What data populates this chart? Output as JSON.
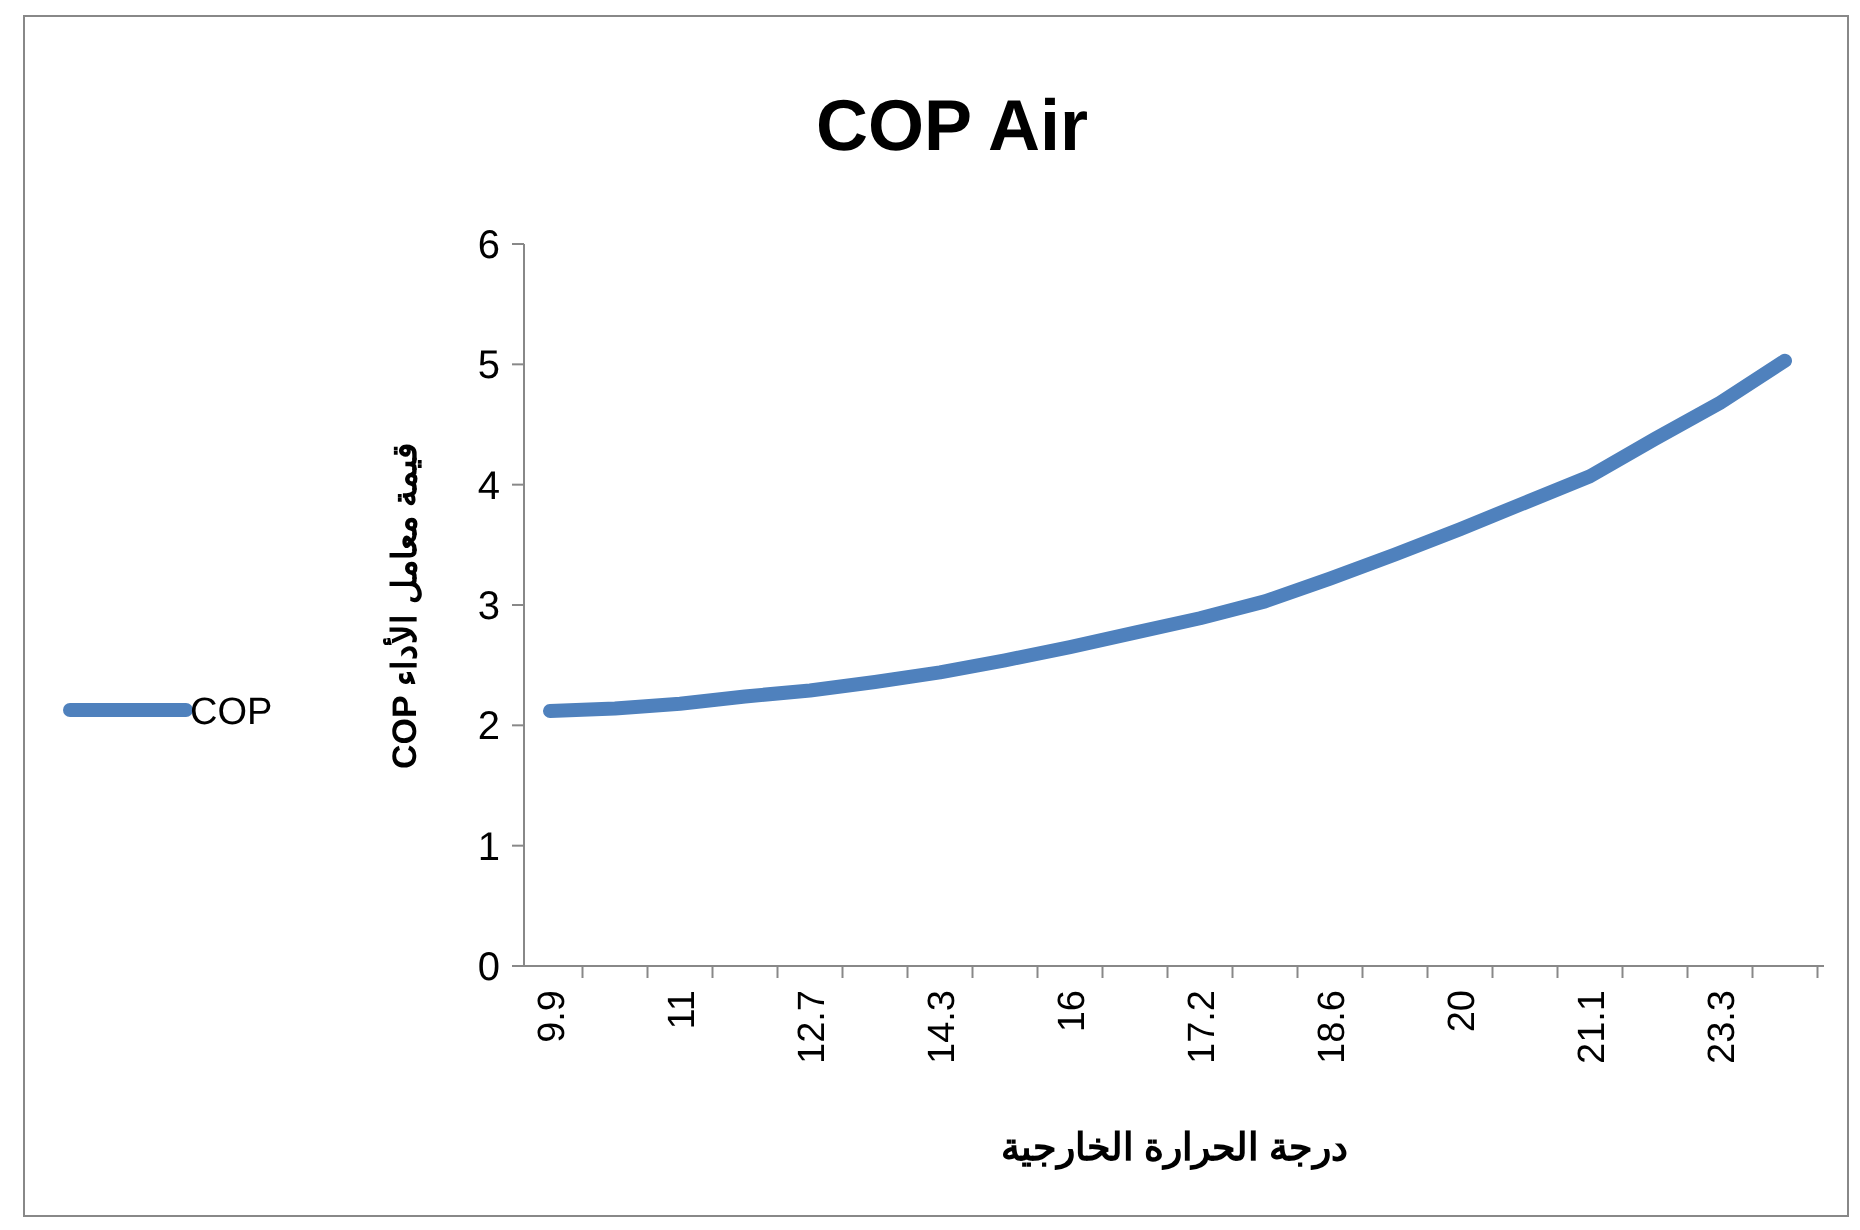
{
  "chart_data": {
    "type": "line",
    "title": "COP Air",
    "xlabel": "درجة الحرارة الخارجية",
    "ylabel": "قيمة معامل الأداء COP",
    "categories": [
      "9.9",
      null,
      "11",
      null,
      "12.7",
      null,
      "14.3",
      null,
      "16",
      null,
      "17.2",
      null,
      "18.6",
      null,
      "20",
      null,
      "21.1",
      null,
      "23.3",
      null
    ],
    "series": [
      {
        "name": "COP",
        "color": "#4f81bd",
        "values": [
          2.12,
          2.14,
          2.18,
          2.24,
          2.29,
          2.36,
          2.44,
          2.54,
          2.65,
          2.77,
          2.89,
          3.03,
          3.22,
          3.42,
          3.63,
          3.85,
          4.07,
          4.38,
          4.68,
          5.03
        ]
      }
    ],
    "ylim": [
      0,
      6
    ],
    "yticks": [
      0,
      1,
      2,
      3,
      4,
      5,
      6
    ],
    "legend": "left",
    "grid": false,
    "marker": "none",
    "line_style": "solid"
  }
}
